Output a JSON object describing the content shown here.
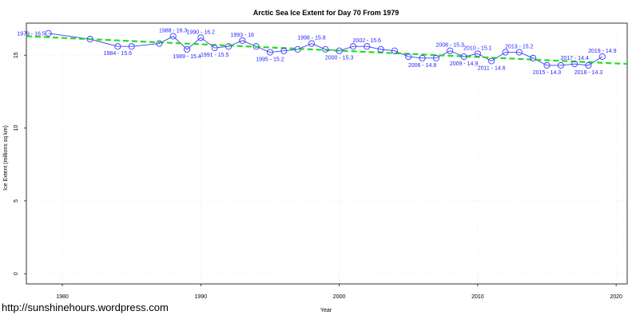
{
  "chart_data": {
    "type": "line",
    "title": "Arctic Sea Ice Extent for Day 70 From 1979",
    "xlabel": "Year",
    "ylabel": "Ice Extent (millions sq km)",
    "xlim": [
      1977.4,
      2020.8
    ],
    "ylim": [
      -0.7,
      17.2
    ],
    "x_ticks": [
      1980,
      1990,
      2000,
      2010,
      2020
    ],
    "y_ticks": [
      0,
      5,
      10,
      15
    ],
    "grid": true,
    "series": [
      {
        "color": "#3a3aff",
        "points": [
          {
            "x": 1979,
            "y": 16.5
          },
          {
            "x": 1982,
            "y": 16.1
          },
          {
            "x": 1984,
            "y": 15.6
          },
          {
            "x": 1985,
            "y": 15.6
          },
          {
            "x": 1987,
            "y": 15.8
          },
          {
            "x": 1988,
            "y": 16.3
          },
          {
            "x": 1989,
            "y": 15.4
          },
          {
            "x": 1990,
            "y": 16.2
          },
          {
            "x": 1991,
            "y": 15.5
          },
          {
            "x": 1992,
            "y": 15.6
          },
          {
            "x": 1993,
            "y": 16.0
          },
          {
            "x": 1994,
            "y": 15.6
          },
          {
            "x": 1995,
            "y": 15.2
          },
          {
            "x": 1996,
            "y": 15.3
          },
          {
            "x": 1997,
            "y": 15.4
          },
          {
            "x": 1998,
            "y": 15.8
          },
          {
            "x": 1999,
            "y": 15.4
          },
          {
            "x": 2000,
            "y": 15.3
          },
          {
            "x": 2001,
            "y": 15.6
          },
          {
            "x": 2002,
            "y": 15.6
          },
          {
            "x": 2003,
            "y": 15.4
          },
          {
            "x": 2004,
            "y": 15.3
          },
          {
            "x": 2005,
            "y": 14.9
          },
          {
            "x": 2006,
            "y": 14.8
          },
          {
            "x": 2007,
            "y": 14.8
          },
          {
            "x": 2008,
            "y": 15.3
          },
          {
            "x": 2009,
            "y": 14.9
          },
          {
            "x": 2010,
            "y": 15.1
          },
          {
            "x": 2011,
            "y": 14.6
          },
          {
            "x": 2012,
            "y": 15.2
          },
          {
            "x": 2013,
            "y": 15.2
          },
          {
            "x": 2014,
            "y": 14.8
          },
          {
            "x": 2015,
            "y": 14.3
          },
          {
            "x": 2016,
            "y": 14.3
          },
          {
            "x": 2017,
            "y": 14.4
          },
          {
            "x": 2018,
            "y": 14.3
          },
          {
            "x": 2019,
            "y": 14.9
          }
        ]
      },
      {
        "type": "trend",
        "color": "#22dd22",
        "points": [
          {
            "x": 1977.4,
            "y": 16.3
          },
          {
            "x": 2020.8,
            "y": 14.4
          }
        ]
      }
    ],
    "annotations": [
      {
        "text": "1979 - 16.5",
        "x": 1979,
        "y": 16.5,
        "pos": "left"
      },
      {
        "text": "1984 - 15.6",
        "x": 1984,
        "y": 15.6,
        "pos": "below"
      },
      {
        "text": "1988 - 16.3",
        "x": 1988,
        "y": 16.3,
        "pos": "above"
      },
      {
        "text": "1989 - 15.4",
        "x": 1989,
        "y": 15.4,
        "pos": "below"
      },
      {
        "text": "1990 - 16.2",
        "x": 1990,
        "y": 16.2,
        "pos": "above"
      },
      {
        "text": "1991 - 15.5",
        "x": 1991,
        "y": 15.5,
        "pos": "below"
      },
      {
        "text": "1993 - 16",
        "x": 1993,
        "y": 16.0,
        "pos": "above"
      },
      {
        "text": "1995 - 15.2",
        "x": 1995,
        "y": 15.2,
        "pos": "below"
      },
      {
        "text": "1998 - 15.8",
        "x": 1998,
        "y": 15.8,
        "pos": "above"
      },
      {
        "text": "2000 - 15.3",
        "x": 2000,
        "y": 15.3,
        "pos": "below"
      },
      {
        "text": "2002 - 15.6",
        "x": 2002,
        "y": 15.6,
        "pos": "above"
      },
      {
        "text": "2006 - 14.8",
        "x": 2006,
        "y": 14.8,
        "pos": "below"
      },
      {
        "text": "2008 - 15.3",
        "x": 2008,
        "y": 15.3,
        "pos": "above"
      },
      {
        "text": "2009 - 14.9",
        "x": 2009,
        "y": 14.9,
        "pos": "below"
      },
      {
        "text": "2010 - 15.1",
        "x": 2010,
        "y": 15.1,
        "pos": "above"
      },
      {
        "text": "2011 - 14.6",
        "x": 2011,
        "y": 14.6,
        "pos": "below"
      },
      {
        "text": "2013 - 15.2",
        "x": 2013,
        "y": 15.2,
        "pos": "above"
      },
      {
        "text": "2015 - 14.3",
        "x": 2015,
        "y": 14.3,
        "pos": "below"
      },
      {
        "text": "2017 - 14.4",
        "x": 2017,
        "y": 14.4,
        "pos": "above"
      },
      {
        "text": "2018 - 14.3",
        "x": 2018,
        "y": 14.3,
        "pos": "below"
      },
      {
        "text": "2019 - 14.9",
        "x": 2019,
        "y": 14.9,
        "pos": "above"
      }
    ]
  },
  "watermark": "http://sunshinehours.wordpress.com"
}
